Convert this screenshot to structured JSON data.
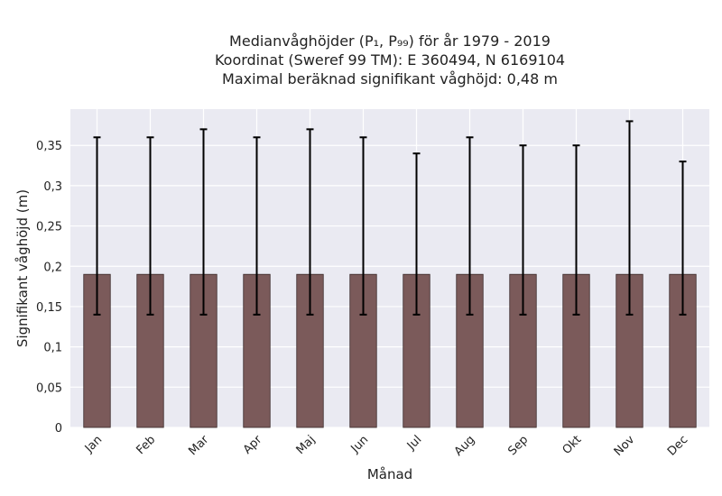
{
  "chart_data": {
    "type": "bar",
    "title_lines": [
      "Medianvåghöjder (P₁, P₉₉) för år 1979 - 2019",
      "Koordinat (Sweref 99 TM): E 360494, N 6169104",
      "Maximal beräknad signifikant våghöjd: 0,48 m"
    ],
    "xlabel": "Månad",
    "ylabel": "Signifikant våghöjd (m)",
    "categories": [
      "Jan",
      "Feb",
      "Mar",
      "Apr",
      "Maj",
      "Jun",
      "Jul",
      "Aug",
      "Sep",
      "Okt",
      "Nov",
      "Dec"
    ],
    "values": [
      0.19,
      0.19,
      0.19,
      0.19,
      0.19,
      0.19,
      0.19,
      0.19,
      0.19,
      0.19,
      0.19,
      0.19
    ],
    "p1": [
      0.14,
      0.14,
      0.14,
      0.14,
      0.14,
      0.14,
      0.14,
      0.14,
      0.14,
      0.14,
      0.14,
      0.14
    ],
    "p99": [
      0.36,
      0.36,
      0.37,
      0.36,
      0.37,
      0.36,
      0.34,
      0.36,
      0.35,
      0.35,
      0.38,
      0.33
    ],
    "ylim": [
      0,
      0.395
    ],
    "yticks": [
      0,
      0.05,
      0.1,
      0.15,
      0.2,
      0.25,
      0.3,
      0.35
    ],
    "ytick_labels": [
      "0",
      "0,05",
      "0,1",
      "0,15",
      "0,2",
      "0,25",
      "0,3",
      "0,35"
    ],
    "grid": true,
    "bar_color": "#7b5a5a",
    "background_color": "#eaeaf2",
    "grid_color": "#ffffff",
    "errorbar_color": "#000000"
  }
}
